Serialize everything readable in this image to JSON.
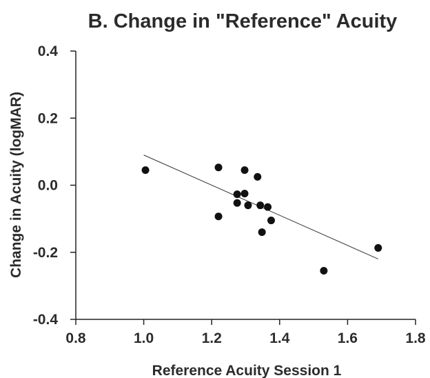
{
  "chart_data": {
    "type": "scatter",
    "title": "B. Change in \"Reference\" Acuity",
    "xlabel": "Reference Acuity Session 1",
    "ylabel": "Change in Acuity (logMAR)",
    "xlim": [
      0.8,
      1.8
    ],
    "ylim": [
      -0.4,
      0.4
    ],
    "x_ticks": [
      "0.8",
      "1.0",
      "1.2",
      "1.4",
      "1.6",
      "1.8"
    ],
    "y_ticks": [
      "0.4",
      "0.2",
      "0.0",
      "-0.2",
      "-0.4"
    ],
    "grid": false,
    "points": [
      {
        "x": 1.005,
        "y": 0.045
      },
      {
        "x": 1.22,
        "y": 0.053
      },
      {
        "x": 1.22,
        "y": -0.093
      },
      {
        "x": 1.275,
        "y": -0.027
      },
      {
        "x": 1.275,
        "y": -0.053
      },
      {
        "x": 1.297,
        "y": 0.045
      },
      {
        "x": 1.297,
        "y": -0.025
      },
      {
        "x": 1.307,
        "y": -0.06
      },
      {
        "x": 1.335,
        "y": 0.025
      },
      {
        "x": 1.343,
        "y": -0.06
      },
      {
        "x": 1.348,
        "y": -0.14
      },
      {
        "x": 1.365,
        "y": -0.065
      },
      {
        "x": 1.375,
        "y": -0.105
      },
      {
        "x": 1.53,
        "y": -0.255
      },
      {
        "x": 1.69,
        "y": -0.187
      }
    ],
    "trendline": {
      "x": [
        1.0,
        1.69
      ],
      "y": [
        0.09,
        -0.22
      ]
    },
    "colors": {
      "marker": "#111111",
      "axis": "#222222",
      "trendline": "#333333",
      "text": "#2b2b2b"
    }
  }
}
